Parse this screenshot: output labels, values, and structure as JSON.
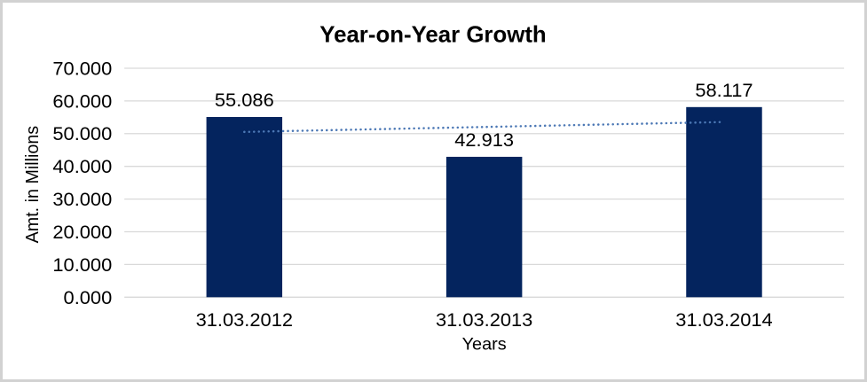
{
  "chart_data": {
    "type": "bar",
    "title": "Year-on-Year Growth",
    "xlabel": "Years",
    "ylabel": "Amt. in Millions",
    "categories": [
      "31.03.2012",
      "31.03.2013",
      "31.03.2014"
    ],
    "values": [
      55.086,
      42.913,
      58.117
    ],
    "value_labels": [
      "55.086",
      "42.913",
      "58.117"
    ],
    "ylim": [
      0,
      70
    ],
    "ytick_step": 10,
    "ytick_labels": [
      "0.000",
      "10.000",
      "20.000",
      "30.000",
      "40.000",
      "50.000",
      "60.000",
      "70.000"
    ],
    "grid": true,
    "legend": "none",
    "bar_color": "#04245E",
    "gridline_color": "#D9D9D9",
    "text_color": "#000000",
    "trendline": {
      "type": "linear",
      "style": "dotted",
      "color": "#4C78B5"
    }
  }
}
